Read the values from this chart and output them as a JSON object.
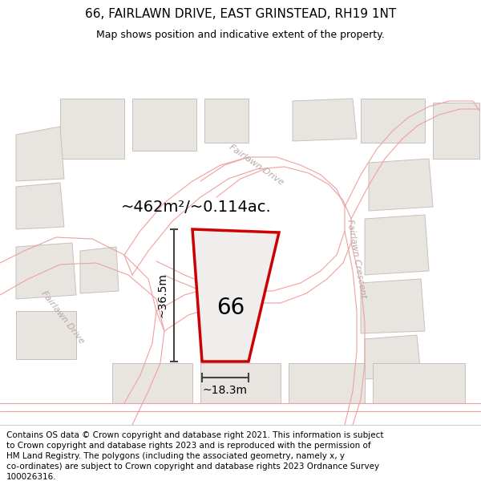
{
  "title": "66, FAIRLAWN DRIVE, EAST GRINSTEAD, RH19 1NT",
  "subtitle": "Map shows position and indicative extent of the property.",
  "copyright_text": "Contains OS data © Crown copyright and database right 2021. This information is subject\nto Crown copyright and database rights 2023 and is reproduced with the permission of\nHM Land Registry. The polygons (including the associated geometry, namely x, y\nco-ordinates) are subject to Crown copyright and database rights 2023 Ordnance Survey\n100026316.",
  "area_text": "~462m²/~0.114ac.",
  "label_66": "66",
  "dim_vertical": "~36.5m",
  "dim_horizontal": "~18.3m",
  "map_bg": "#ffffff",
  "plot_color": "#cc0000",
  "road_line_color": "#f0a0a0",
  "building_edge_color": "#c8c0bc",
  "building_fill_color": "#e8e4e0",
  "road_label_color": "#b8a8a8",
  "dim_color": "#444444",
  "figsize": [
    6.0,
    6.25
  ],
  "dpi": 100,
  "title_fontsize": 11,
  "subtitle_fontsize": 9,
  "area_fontsize": 14,
  "label_fontsize": 20,
  "dim_fontsize": 10,
  "road_label_fontsize": 8,
  "copyright_fontsize": 7.5
}
